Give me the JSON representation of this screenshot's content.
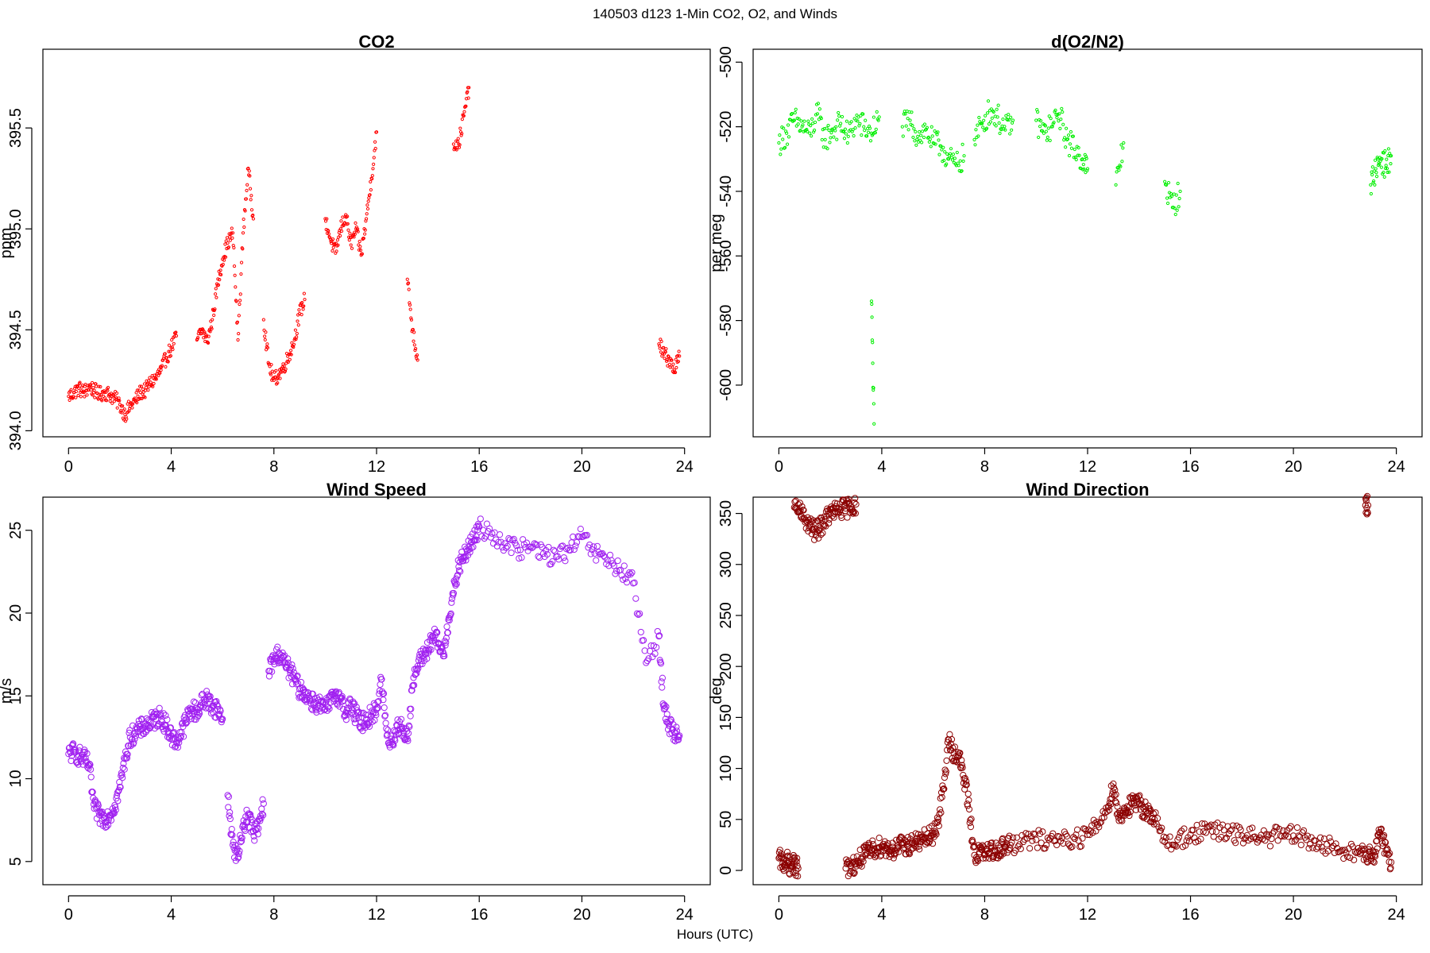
{
  "figure": {
    "title": "140503   d123   1-Min CO2, O2, and Winds",
    "xlabel": "Hours (UTC)"
  },
  "chart_data": [
    {
      "id": "co2",
      "type": "scatter",
      "title": "CO2",
      "xlabel": "",
      "ylabel": "ppm",
      "xlim": [
        -1,
        25
      ],
      "ylim": [
        393.97,
        395.89
      ],
      "xticks": [
        0,
        4,
        8,
        12,
        16,
        20,
        24
      ],
      "yticks": [
        394.0,
        394.5,
        395.0,
        395.5
      ],
      "ytick_labels": [
        "394.0",
        "394.5",
        "395.0",
        "395.5"
      ],
      "color": "#ff0000",
      "marker_radius": 1.6,
      "series": [
        {
          "x": [
            0,
            0.2,
            0.4,
            0.6,
            0.8,
            1.0,
            1.2,
            1.4,
            1.6,
            1.8,
            2.0,
            2.2,
            2.4,
            2.6,
            2.8,
            3.0,
            3.2,
            3.4,
            3.6,
            3.8,
            4.0,
            4.2
          ],
          "y": [
            394.17,
            394.19,
            394.21,
            394.19,
            394.22,
            394.2,
            394.18,
            394.19,
            394.18,
            394.16,
            394.13,
            394.08,
            394.12,
            394.15,
            394.19,
            394.2,
            394.24,
            394.26,
            394.3,
            394.36,
            394.41,
            394.47
          ]
        },
        {
          "x": [
            5.0,
            5.2,
            5.4,
            5.6,
            5.8,
            6.0,
            6.2,
            6.4,
            6.6,
            6.8,
            7.0,
            7.2
          ],
          "y": [
            394.45,
            394.5,
            394.44,
            394.55,
            394.72,
            394.85,
            394.93,
            394.98,
            394.45,
            394.98,
            395.3,
            395.05
          ]
        },
        {
          "x": [
            7.6,
            7.8,
            8.0,
            8.2,
            8.4,
            8.6,
            8.8,
            9.0,
            9.2
          ],
          "y": [
            394.55,
            394.33,
            394.25,
            394.28,
            394.32,
            394.38,
            394.45,
            394.58,
            394.65
          ]
        },
        {
          "x": [
            10.0,
            10.2,
            10.4,
            10.6,
            10.8,
            11.0,
            11.2,
            11.4,
            11.6,
            11.8,
            12.0
          ],
          "y": [
            395.05,
            394.95,
            394.88,
            395.0,
            395.07,
            394.92,
            395.0,
            394.87,
            395.05,
            395.25,
            395.48
          ]
        },
        {
          "x": [
            13.2,
            13.4,
            13.6
          ],
          "y": [
            394.75,
            394.5,
            394.35
          ]
        },
        {
          "x": [
            15.0,
            15.2,
            15.4,
            15.6
          ],
          "y": [
            395.42,
            395.42,
            395.56,
            395.7
          ]
        },
        {
          "x": [
            23.0,
            23.2,
            23.4,
            23.6,
            23.8
          ],
          "y": [
            394.43,
            394.38,
            394.35,
            394.3,
            394.37
          ]
        }
      ]
    },
    {
      "id": "o2n2",
      "type": "scatter",
      "title": "d(O2/N2)",
      "xlabel": "",
      "ylabel": "per meg",
      "xlim": [
        -1,
        25
      ],
      "ylim": [
        -616,
        -496
      ],
      "xticks": [
        0,
        4,
        8,
        12,
        16,
        20,
        24
      ],
      "yticks": [
        -600,
        -580,
        -560,
        -540,
        -520,
        -500
      ],
      "ytick_labels": [
        "-600",
        "-580",
        "-560",
        "-540",
        "-520",
        "-500"
      ],
      "color": "#00ee00",
      "marker_radius": 1.6,
      "series": [
        {
          "x": [
            0,
            0.3,
            0.6,
            0.9,
            1.2,
            1.5,
            1.8,
            2.1,
            2.4,
            2.7,
            3.0,
            3.3,
            3.6,
            3.9
          ],
          "y": [
            -525,
            -522,
            -518,
            -520,
            -522,
            -516,
            -524,
            -521,
            -519,
            -523,
            -518,
            -520,
            -522,
            -517
          ]
        },
        {
          "x": [
            3.6,
            3.7
          ],
          "y": [
            -574,
            -612
          ]
        },
        {
          "x": [
            4.8,
            5.1,
            5.4,
            5.7,
            6.0,
            6.3,
            6.6,
            6.9,
            7.2
          ],
          "y": [
            -520,
            -518,
            -523,
            -521,
            -525,
            -526,
            -530,
            -532,
            -529
          ]
        },
        {
          "x": [
            7.6,
            7.9,
            8.2,
            8.5,
            8.8,
            9.1
          ],
          "y": [
            -524,
            -519,
            -515,
            -517,
            -521,
            -518
          ]
        },
        {
          "x": [
            10.0,
            10.3,
            10.6,
            10.9,
            11.2,
            11.5,
            11.8,
            12.0
          ],
          "y": [
            -518,
            -522,
            -520,
            -516,
            -524,
            -527,
            -530,
            -533
          ]
        },
        {
          "x": [
            13.1,
            13.4
          ],
          "y": [
            -538,
            -525
          ]
        },
        {
          "x": [
            15.0,
            15.3,
            15.6
          ],
          "y": [
            -537,
            -545,
            -540
          ]
        },
        {
          "x": [
            23.0,
            23.2,
            23.4,
            23.6,
            23.8
          ],
          "y": [
            -538,
            -533,
            -530,
            -532,
            -529
          ]
        }
      ]
    },
    {
      "id": "wspd",
      "type": "scatter",
      "title": "Wind Speed",
      "xlabel": "",
      "ylabel": "m/s",
      "xlim": [
        -1,
        25
      ],
      "ylim": [
        3.6,
        27.0
      ],
      "xticks": [
        0,
        4,
        8,
        12,
        16,
        20,
        24
      ],
      "yticks": [
        5,
        10,
        15,
        20,
        25
      ],
      "ytick_labels": [
        "5",
        "10",
        "15",
        "20",
        "25"
      ],
      "color": "#a020f0",
      "marker_radius": 3.6,
      "series": [
        {
          "x": [
            0,
            0.2,
            0.4,
            0.6,
            0.8,
            1.0,
            1.2,
            1.4,
            1.6,
            1.8,
            2.0,
            2.2,
            2.4,
            2.6,
            2.8,
            3.0,
            3.2,
            3.4,
            3.6,
            3.8,
            4.0,
            4.2,
            4.4,
            4.6,
            4.8,
            5.0,
            5.2,
            5.4,
            5.6,
            5.8,
            6.0
          ],
          "y": [
            11.5,
            11.6,
            11.4,
            11.2,
            10.8,
            8.2,
            7.8,
            7.6,
            7.8,
            8.4,
            9.5,
            11.2,
            12.5,
            12.8,
            13.0,
            13.2,
            13.4,
            13.6,
            13.8,
            13.2,
            12.6,
            12.2,
            12.8,
            13.6,
            14.2,
            14.0,
            14.6,
            14.8,
            14.4,
            14.2,
            13.6
          ]
        },
        {
          "x": [
            6.2,
            6.4,
            6.6,
            6.8,
            7.0,
            7.2,
            7.4,
            7.6
          ],
          "y": [
            9.0,
            6.0,
            5.2,
            7.2,
            7.8,
            6.8,
            7.0,
            8.5
          ]
        },
        {
          "x": [
            7.8,
            8.0,
            8.2,
            8.4,
            8.6,
            8.8,
            9.0,
            9.2,
            9.4,
            9.6,
            9.8,
            10.0,
            10.2,
            10.4,
            10.6,
            10.8,
            11.0,
            11.2,
            11.4,
            11.6,
            11.8,
            12.0,
            12.2,
            12.4,
            12.6,
            12.8,
            13.0,
            13.2,
            13.4,
            13.6,
            13.8,
            14.0,
            14.2,
            14.4,
            14.6,
            14.8,
            15.0,
            15.2,
            15.4,
            15.6,
            15.8,
            16.0,
            16.5,
            17.0,
            17.5,
            18.0,
            18.5,
            19.0,
            19.5,
            20.0,
            20.5,
            21.0,
            21.5,
            22.0,
            22.5,
            23.0,
            23.2,
            23.4,
            23.6,
            23.8
          ],
          "y": [
            16.5,
            17.2,
            17.6,
            17.0,
            16.6,
            16.0,
            15.4,
            15.2,
            14.8,
            14.6,
            14.4,
            14.2,
            14.6,
            15.2,
            14.8,
            14.0,
            14.4,
            13.8,
            13.4,
            13.6,
            13.8,
            14.2,
            16.0,
            12.6,
            12.2,
            13.2,
            13.0,
            12.4,
            15.6,
            16.8,
            17.4,
            17.8,
            18.6,
            18.2,
            17.4,
            19.6,
            21.2,
            22.8,
            23.4,
            24.0,
            24.4,
            25.2,
            24.8,
            24.2,
            23.8,
            24.0,
            23.6,
            23.4,
            23.8,
            24.6,
            23.6,
            23.2,
            22.6,
            21.8,
            17.0,
            18.6,
            14.2,
            13.2,
            12.8,
            12.6
          ]
        }
      ]
    },
    {
      "id": "wdir",
      "type": "scatter",
      "title": "Wind Direction",
      "xlabel": "",
      "ylabel": "deg",
      "xlim": [
        -1,
        25
      ],
      "ylim": [
        -14,
        366
      ],
      "xticks": [
        0,
        4,
        8,
        12,
        16,
        20,
        24
      ],
      "yticks": [
        0,
        50,
        100,
        150,
        200,
        250,
        300,
        350
      ],
      "ytick_labels": [
        "0",
        "50",
        "100",
        "150",
        "200",
        "250",
        "300",
        "350"
      ],
      "color": "#8b0000",
      "marker_radius": 3.6,
      "series": [
        {
          "x": [
            0,
            0.15,
            0.3,
            0.45,
            0.6,
            0.75
          ],
          "y": [
            12,
            7,
            10,
            4,
            6,
            2
          ]
        },
        {
          "x": [
            0.6,
            0.8,
            1.0,
            1.2,
            1.4,
            1.6,
            1.8,
            2.0,
            2.2,
            2.4,
            2.6,
            2.8,
            3.0
          ],
          "y": [
            356,
            352,
            345,
            338,
            332,
            336,
            344,
            350,
            352,
            354,
            355,
            357,
            359
          ]
        },
        {
          "x": [
            2.6,
            2.8,
            3.0,
            3.2,
            3.4,
            3.6,
            3.8,
            4.0,
            4.2,
            4.4,
            4.6,
            4.8,
            5.0,
            5.2,
            5.4,
            5.6,
            5.8,
            6.0,
            6.2,
            6.4,
            6.6,
            6.8,
            7.0,
            7.2,
            7.4,
            7.6,
            7.8,
            8.0,
            8.2,
            8.4,
            8.6,
            8.8,
            9.0,
            9.5,
            10.0,
            10.5,
            11.0,
            11.5,
            12.0,
            12.4,
            12.8,
            13.0,
            13.2,
            13.4,
            13.6,
            13.8,
            14.0,
            14.2,
            14.4,
            14.6,
            15.0,
            15.5,
            16.0,
            16.5,
            17.0,
            17.5,
            18.0,
            18.5,
            19.0,
            19.5,
            20.0,
            20.5,
            21.0,
            21.5,
            22.0,
            22.5,
            22.8,
            23.0,
            23.2,
            23.4,
            23.6,
            23.8
          ],
          "y": [
            2,
            4,
            7,
            12,
            16,
            20,
            22,
            24,
            22,
            20,
            22,
            25,
            24,
            27,
            28,
            30,
            32,
            35,
            50,
            80,
            128,
            115,
            112,
            90,
            60,
            15,
            18,
            16,
            18,
            20,
            22,
            24,
            25,
            28,
            30,
            30,
            32,
            31,
            35,
            45,
            62,
            85,
            52,
            58,
            62,
            66,
            65,
            60,
            58,
            50,
            28,
            30,
            35,
            38,
            38,
            36,
            34,
            33,
            33,
            34,
            34,
            30,
            26,
            22,
            20,
            18,
            15,
            14,
            18,
            40,
            20,
            8
          ]
        },
        {
          "x": [
            22.8,
            22.9
          ],
          "y": [
            358,
            358
          ]
        }
      ]
    }
  ]
}
